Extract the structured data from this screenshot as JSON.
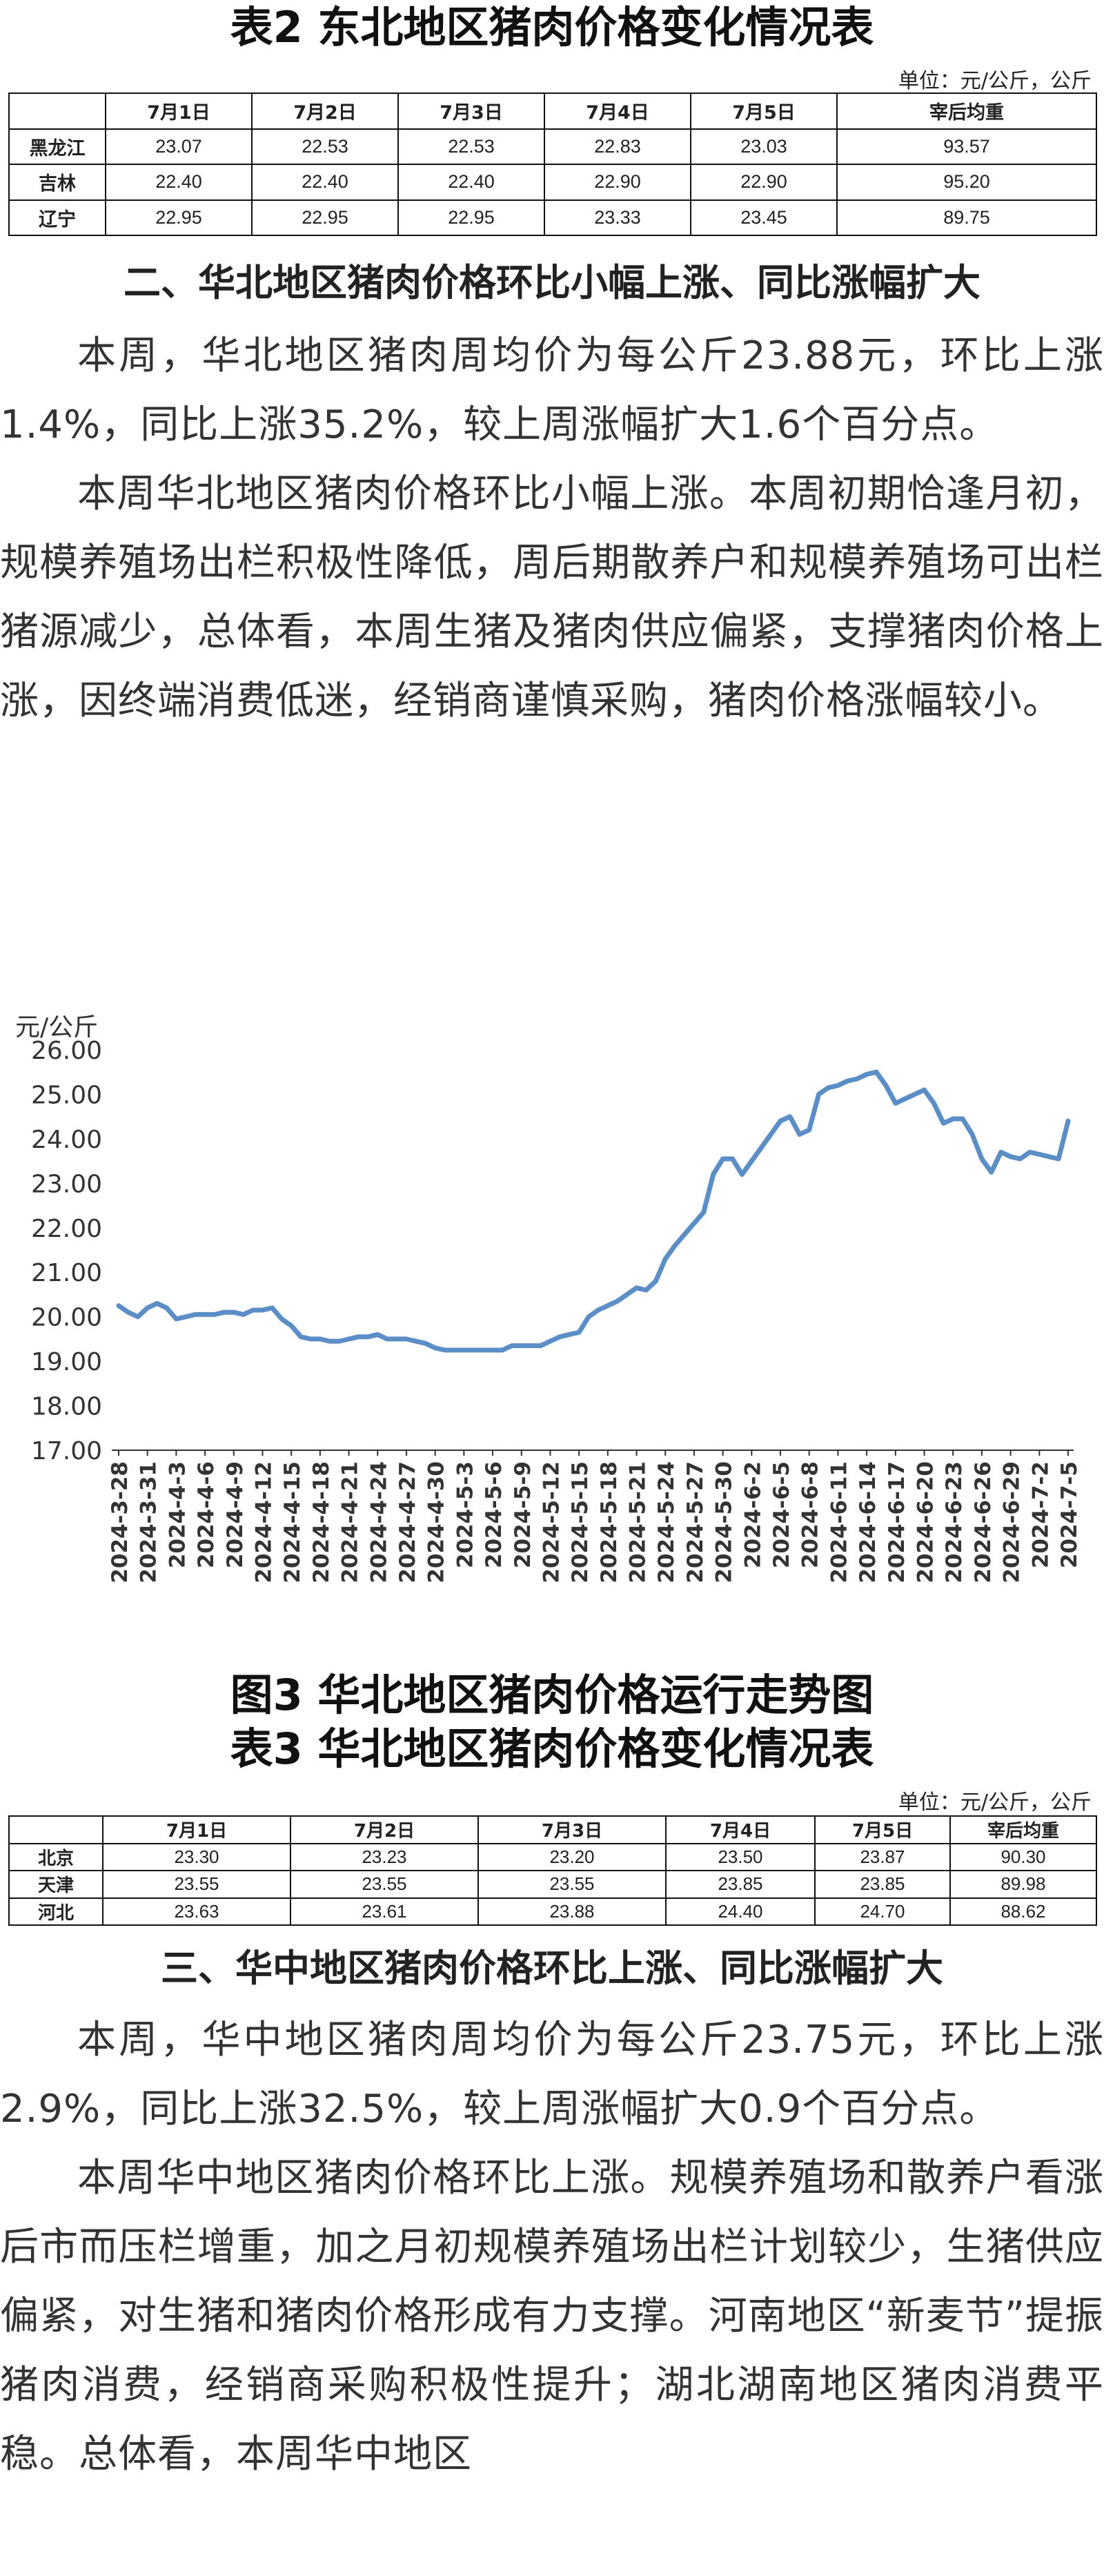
{
  "table2": {
    "title": "表2  东北地区猪肉价格变化情况表",
    "unit": "单位：元/公斤，公斤",
    "headers": [
      "",
      "7月1日",
      "7月2日",
      "7月3日",
      "7月4日",
      "7月5日",
      "宰后均重"
    ],
    "rows": [
      [
        "黑龙江",
        "23.07",
        "22.53",
        "22.53",
        "22.83",
        "23.03",
        "93.57"
      ],
      [
        "吉林",
        "22.40",
        "22.40",
        "22.40",
        "22.90",
        "22.90",
        "95.20"
      ],
      [
        "辽宁",
        "22.95",
        "22.95",
        "22.95",
        "23.33",
        "23.45",
        "89.75"
      ]
    ]
  },
  "section2": {
    "heading": "二、华北地区猪肉价格环比小幅上涨、同比涨幅扩大",
    "para1": "本周，华北地区猪肉周均价为每公斤23.88元，环比上涨1.4%，同比上涨35.2%，较上周涨幅扩大1.6个百分点。",
    "para2": "本周华北地区猪肉价格环比小幅上涨。本周初期恰逢月初，规模养殖场出栏积极性降低，周后期散养户和规模养殖场可出栏猪源减少，总体看，本周生猪及猪肉供应偏紧，支撑猪肉价格上涨，因终端消费低迷，经销商谨慎采购，猪肉价格涨幅较小。"
  },
  "chart_data": {
    "type": "line",
    "title": "图3  华北地区猪肉价格运行走势图",
    "ylabel": "元/公斤",
    "xlabel": "",
    "ylim": [
      17,
      26
    ],
    "yticks": [
      "17.00",
      "18.00",
      "19.00",
      "20.00",
      "21.00",
      "22.00",
      "23.00",
      "24.00",
      "25.00",
      "26.00"
    ],
    "color": "#5b8ec7",
    "grid": false,
    "x_tick_labels": [
      "2024-3-28",
      "2024-3-31",
      "2024-4-3",
      "2024-4-6",
      "2024-4-9",
      "2024-4-12",
      "2024-4-15",
      "2024-4-18",
      "2024-4-21",
      "2024-4-24",
      "2024-4-27",
      "2024-4-30",
      "2024-5-3",
      "2024-5-6",
      "2024-5-9",
      "2024-5-12",
      "2024-5-15",
      "2024-5-18",
      "2024-5-21",
      "2024-5-24",
      "2024-5-27",
      "2024-5-30",
      "2024-6-2",
      "2024-6-5",
      "2024-6-8",
      "2024-6-11",
      "2024-6-14",
      "2024-6-17",
      "2024-6-20",
      "2024-6-23",
      "2024-6-26",
      "2024-6-29",
      "2024-7-2",
      "2024-7-5"
    ],
    "x": [
      "2024-3-28",
      "2024-3-29",
      "2024-3-30",
      "2024-3-31",
      "2024-4-1",
      "2024-4-2",
      "2024-4-3",
      "2024-4-4",
      "2024-4-5",
      "2024-4-6",
      "2024-4-7",
      "2024-4-8",
      "2024-4-9",
      "2024-4-10",
      "2024-4-11",
      "2024-4-12",
      "2024-4-13",
      "2024-4-14",
      "2024-4-15",
      "2024-4-16",
      "2024-4-17",
      "2024-4-18",
      "2024-4-19",
      "2024-4-20",
      "2024-4-21",
      "2024-4-22",
      "2024-4-23",
      "2024-4-24",
      "2024-4-25",
      "2024-4-26",
      "2024-4-27",
      "2024-4-28",
      "2024-4-29",
      "2024-4-30",
      "2024-5-1",
      "2024-5-2",
      "2024-5-3",
      "2024-5-4",
      "2024-5-5",
      "2024-5-6",
      "2024-5-7",
      "2024-5-8",
      "2024-5-9",
      "2024-5-10",
      "2024-5-11",
      "2024-5-12",
      "2024-5-13",
      "2024-5-14",
      "2024-5-15",
      "2024-5-16",
      "2024-5-17",
      "2024-5-18",
      "2024-5-19",
      "2024-5-20",
      "2024-5-21",
      "2024-5-22",
      "2024-5-23",
      "2024-5-24",
      "2024-5-25",
      "2024-5-26",
      "2024-5-27",
      "2024-5-28",
      "2024-5-29",
      "2024-5-30",
      "2024-5-31",
      "2024-6-1",
      "2024-6-2",
      "2024-6-3",
      "2024-6-4",
      "2024-6-5",
      "2024-6-6",
      "2024-6-7",
      "2024-6-8",
      "2024-6-9",
      "2024-6-10",
      "2024-6-11",
      "2024-6-12",
      "2024-6-13",
      "2024-6-14",
      "2024-6-15",
      "2024-6-16",
      "2024-6-17",
      "2024-6-18",
      "2024-6-19",
      "2024-6-20",
      "2024-6-21",
      "2024-6-22",
      "2024-6-23",
      "2024-6-24",
      "2024-6-25",
      "2024-6-26",
      "2024-6-27",
      "2024-6-28",
      "2024-6-29",
      "2024-6-30",
      "2024-7-1",
      "2024-7-2",
      "2024-7-3",
      "2024-7-4",
      "2024-7-5"
    ],
    "series": [
      {
        "values": [
          20.25,
          20.1,
          20.0,
          20.2,
          20.3,
          20.2,
          19.95,
          20.0,
          20.05,
          20.05,
          20.05,
          20.1,
          20.1,
          20.05,
          20.15,
          20.15,
          20.2,
          19.95,
          19.8,
          19.55,
          19.5,
          19.5,
          19.45,
          19.45,
          19.5,
          19.55,
          19.55,
          19.6,
          19.5,
          19.5,
          19.5,
          19.45,
          19.4,
          19.3,
          19.25,
          19.25,
          19.25,
          19.25,
          19.25,
          19.25,
          19.25,
          19.35,
          19.35,
          19.35,
          19.35,
          19.45,
          19.55,
          19.6,
          19.65,
          20.0,
          20.15,
          20.25,
          20.35,
          20.5,
          20.65,
          20.6,
          20.8,
          21.3,
          21.6,
          21.85,
          22.1,
          22.35,
          23.2,
          23.55,
          23.55,
          23.2,
          23.5,
          23.8,
          24.1,
          24.4,
          24.5,
          24.1,
          24.2,
          25.0,
          25.15,
          25.2,
          25.3,
          25.35,
          25.45,
          25.5,
          25.2,
          24.8,
          24.9,
          25.0,
          25.1,
          24.8,
          24.35,
          24.45,
          24.45,
          24.1,
          23.55,
          23.25,
          23.7,
          23.6,
          23.55,
          23.7,
          23.65,
          23.6,
          23.55,
          24.4
        ]
      }
    ]
  },
  "table3": {
    "title": "表3  华北地区猪肉价格变化情况表",
    "unit": "单位：元/公斤，公斤",
    "headers": [
      "",
      "7月1日",
      "7月2日",
      "7月3日",
      "7月4日",
      "7月5日",
      "宰后均重"
    ],
    "rows": [
      [
        "北京",
        "23.30",
        "23.23",
        "23.20",
        "23.50",
        "23.87",
        "90.30"
      ],
      [
        "天津",
        "23.55",
        "23.55",
        "23.55",
        "23.85",
        "23.85",
        "89.98"
      ],
      [
        "河北",
        "23.63",
        "23.61",
        "23.88",
        "24.40",
        "24.70",
        "88.62"
      ]
    ]
  },
  "section3": {
    "heading": "三、华中地区猪肉价格环比上涨、同比涨幅扩大",
    "para1": "本周，华中地区猪肉周均价为每公斤23.75元，环比上涨2.9%，同比上涨32.5%，较上周涨幅扩大0.9个百分点。",
    "para2": "本周华中地区猪肉价格环比上涨。规模养殖场和散养户看涨后市而压栏增重，加之月初规模养殖场出栏计划较少，生猪供应偏紧，对生猪和猪肉价格形成有力支撑。河南地区“新麦节”提振猪肉消费，经销商采购积极性提升；湖北湖南地区猪肉消费平稳。总体看，本周华中地区"
  }
}
